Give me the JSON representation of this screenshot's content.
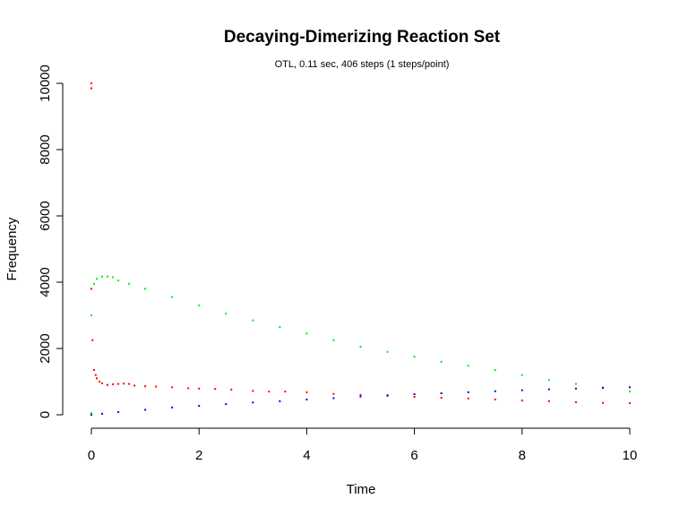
{
  "chart_data": {
    "type": "scatter",
    "title": "Decaying-Dimerizing Reaction Set",
    "subtitle": "OTL, 0.11 sec, 406 steps (1 steps/point)",
    "xlabel": "Time",
    "ylabel": "Frequency",
    "xlim": [
      0,
      10
    ],
    "ylim": [
      0,
      10000
    ],
    "xticks": [
      0,
      2,
      4,
      6,
      8,
      10
    ],
    "yticks": [
      0,
      2000,
      4000,
      6000,
      8000,
      10000
    ],
    "grid": false,
    "legend": "none",
    "series": [
      {
        "color": "#ff0000",
        "x": [
          0,
          0,
          0,
          0.02,
          0.05,
          0.08,
          0.1,
          0.15,
          0.2,
          0.3,
          0.4,
          0.5,
          0.6,
          0.7,
          0.8,
          1.0,
          1.2,
          1.5,
          1.8,
          2.0,
          2.3,
          2.6,
          3.0,
          3.3,
          3.6,
          4.0,
          4.5,
          5.0,
          5.5,
          6.0,
          6.5,
          7.0,
          7.5,
          8.0,
          8.5,
          9.0,
          9.5,
          10.0
        ],
        "y": [
          10000,
          9850,
          3800,
          2250,
          1350,
          1200,
          1100,
          1000,
          950,
          900,
          920,
          930,
          940,
          930,
          880,
          860,
          850,
          830,
          800,
          790,
          780,
          760,
          720,
          700,
          700,
          680,
          630,
          600,
          570,
          540,
          510,
          490,
          460,
          430,
          410,
          380,
          360,
          350
        ]
      },
      {
        "color": "#00ee00",
        "x": [
          0,
          0,
          0.05,
          0.1,
          0.2,
          0.3,
          0.4,
          0.5,
          0.7,
          1.0,
          1.5,
          2.0,
          2.5,
          3.0,
          3.5,
          4.0,
          4.5,
          5.0,
          5.5,
          6.0,
          6.5,
          7.0,
          7.5,
          8.0,
          8.5,
          9.0,
          9.5,
          10.0
        ],
        "y": [
          50,
          3000,
          3950,
          4100,
          4170,
          4170,
          4150,
          4050,
          3950,
          3800,
          3550,
          3300,
          3050,
          2850,
          2650,
          2450,
          2250,
          2050,
          1900,
          1750,
          1600,
          1480,
          1350,
          1200,
          1050,
          930,
          820,
          700
        ]
      },
      {
        "color": "#0000ee",
        "x": [
          0,
          0.2,
          0.5,
          1.0,
          1.5,
          2.0,
          2.5,
          3.0,
          3.5,
          4.0,
          4.5,
          5.0,
          5.5,
          6.0,
          6.5,
          7.0,
          7.5,
          8.0,
          8.5,
          9.0,
          9.5,
          10.0
        ],
        "y": [
          0,
          30,
          80,
          150,
          220,
          270,
          320,
          370,
          410,
          460,
          500,
          550,
          590,
          620,
          650,
          680,
          710,
          740,
          770,
          790,
          810,
          830
        ]
      }
    ]
  }
}
